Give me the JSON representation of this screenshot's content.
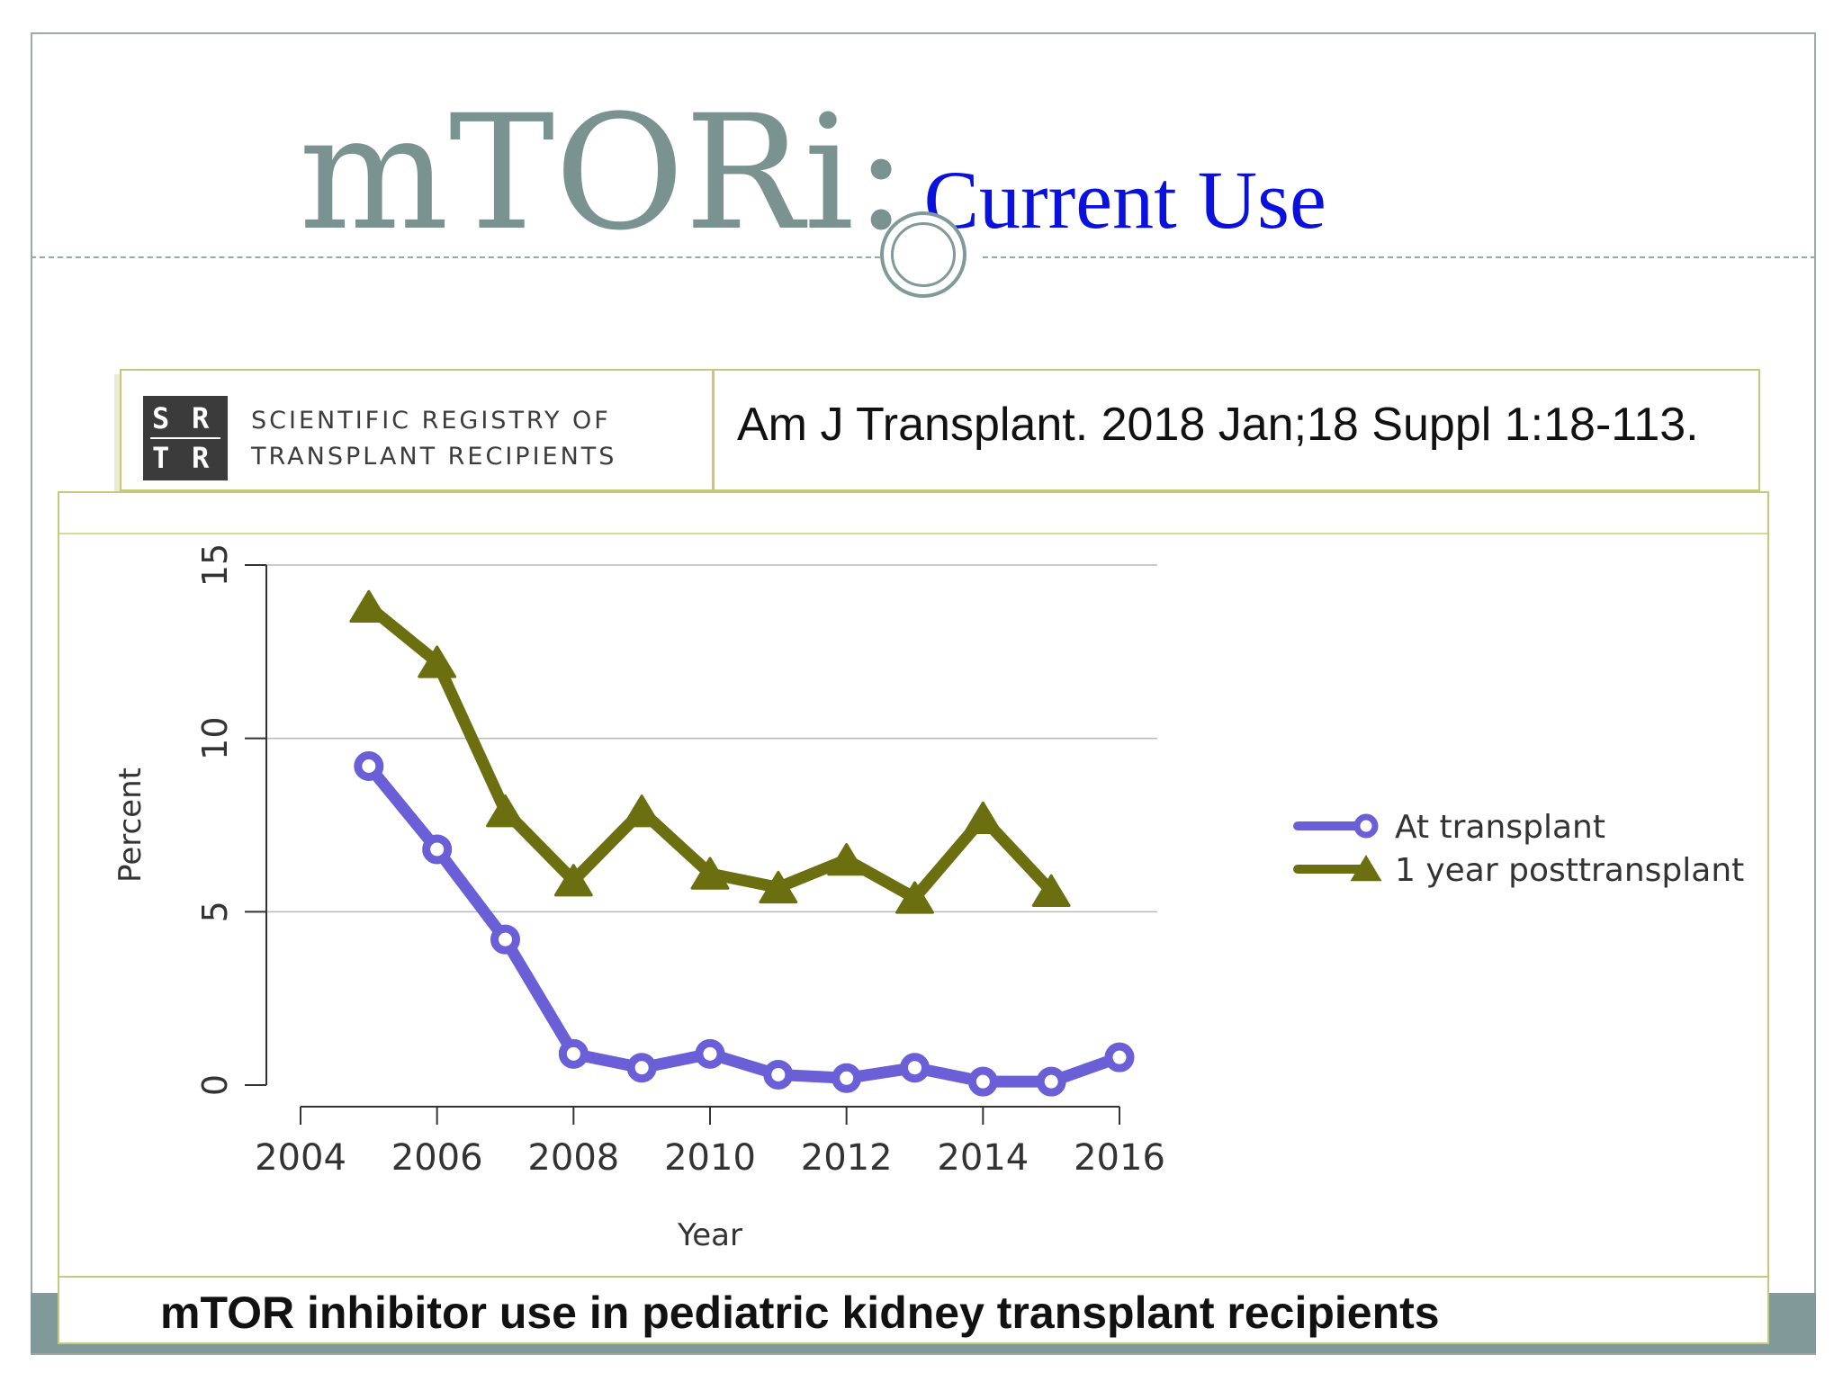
{
  "slide": {
    "title_main": "mTORi:",
    "title_sub": "Current Use",
    "accent_color": "#7a9391",
    "sub_color": "#0a11df"
  },
  "source": {
    "logo_letters": [
      "S",
      "R",
      "T",
      "R"
    ],
    "registry_line1": "SCIENTIFIC REGISTRY OF",
    "registry_line2": "TRANSPLANT RECIPIENTS",
    "citation": "Am J Transplant. 2018 Jan;18 Suppl 1:18-113."
  },
  "caption": "mTOR inhibitor use in pediatric kidney transplant recipients",
  "chart_data": {
    "type": "line",
    "xlabel": "Year",
    "ylabel": "Percent",
    "xlim": [
      2004,
      2016
    ],
    "ylim": [
      0,
      15
    ],
    "xticks": [
      2004,
      2006,
      2008,
      2010,
      2012,
      2014,
      2016
    ],
    "yticks": [
      0,
      5,
      10,
      15
    ],
    "grid": "horizontal",
    "legend_position": "right",
    "series": [
      {
        "name": "At transplant",
        "marker": "circle",
        "color": "#6a5fd6",
        "x": [
          2005,
          2006,
          2007,
          2008,
          2009,
          2010,
          2011,
          2012,
          2013,
          2014,
          2015,
          2016
        ],
        "y": [
          9.2,
          6.8,
          4.2,
          0.9,
          0.5,
          0.9,
          0.3,
          0.2,
          0.5,
          0.1,
          0.1,
          0.8
        ]
      },
      {
        "name": "1 year posttransplant",
        "marker": "triangle",
        "color": "#6b6f0f",
        "x": [
          2005,
          2006,
          2007,
          2008,
          2009,
          2010,
          2011,
          2012,
          2013,
          2014,
          2015
        ],
        "y": [
          13.8,
          12.2,
          7.9,
          5.9,
          7.9,
          6.1,
          5.7,
          6.5,
          5.4,
          7.7,
          5.6
        ]
      }
    ]
  }
}
